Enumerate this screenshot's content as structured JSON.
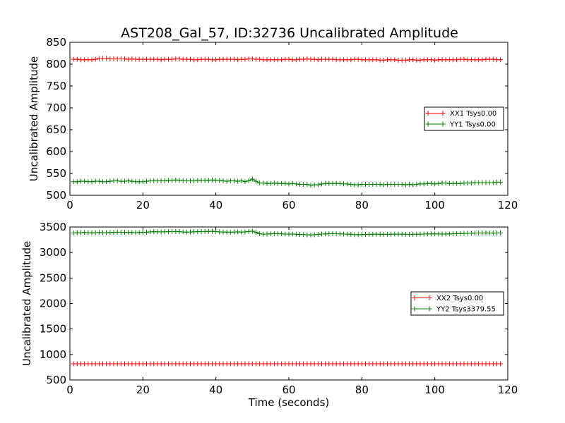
{
  "figure": {
    "title": "AST208_Gal_57, ID:32736 Uncalibrated Amplitude"
  },
  "chart_data": [
    {
      "type": "line",
      "title": "AST208_Gal_57, ID:32736 Uncalibrated Amplitude",
      "xlabel": "",
      "ylabel": "Uncalibrated Amplitude",
      "xlim": [
        0,
        120
      ],
      "ylim": [
        500,
        850
      ],
      "xticks": [
        0,
        20,
        40,
        60,
        80,
        100,
        120
      ],
      "yticks": [
        500,
        550,
        600,
        650,
        700,
        750,
        800,
        850
      ],
      "grid": false,
      "legend_position": "center-right",
      "x_start": 1,
      "x_step": 1,
      "series": [
        {
          "name": "XX1 Tsys0.00",
          "color": "#ff0000",
          "marker": "+",
          "values": [
            811,
            811,
            810,
            810,
            810,
            810,
            811,
            813,
            813,
            813,
            812,
            812,
            812,
            812,
            812,
            811,
            812,
            811,
            811,
            811,
            811,
            811,
            811,
            811,
            810,
            811,
            811,
            811,
            812,
            812,
            811,
            811,
            811,
            810,
            810,
            811,
            811,
            811,
            810,
            810,
            811,
            811,
            811,
            811,
            811,
            810,
            811,
            811,
            812,
            812,
            811,
            811,
            810,
            810,
            810,
            810,
            810,
            810,
            811,
            811,
            810,
            810,
            811,
            811,
            812,
            811,
            811,
            810,
            811,
            811,
            811,
            811,
            810,
            810,
            810,
            810,
            810,
            811,
            811,
            810,
            810,
            810,
            810,
            810,
            809,
            809,
            810,
            810,
            810,
            809,
            809,
            809,
            810,
            810,
            809,
            809,
            810,
            810,
            810,
            809,
            810,
            810,
            810,
            810,
            810,
            810,
            811,
            811,
            810,
            810,
            810,
            810,
            810,
            811,
            811,
            811,
            810,
            810
          ]
        },
        {
          "name": "YY1 Tsys0.00",
          "color": "#008000",
          "marker": "+",
          "values": [
            531,
            531,
            532,
            532,
            531,
            531,
            532,
            532,
            531,
            531,
            532,
            533,
            533,
            532,
            532,
            533,
            532,
            531,
            531,
            531,
            532,
            533,
            533,
            533,
            533,
            533,
            534,
            534,
            535,
            534,
            533,
            533,
            533,
            533,
            534,
            534,
            534,
            534,
            535,
            534,
            534,
            533,
            532,
            533,
            533,
            532,
            533,
            531,
            533,
            537,
            532,
            528,
            528,
            527,
            527,
            528,
            527,
            527,
            527,
            526,
            527,
            526,
            525,
            525,
            525,
            523,
            524,
            524,
            526,
            527,
            527,
            527,
            527,
            527,
            526,
            526,
            525,
            524,
            524,
            525,
            525,
            525,
            525,
            525,
            525,
            524,
            525,
            525,
            525,
            525,
            525,
            524,
            525,
            524,
            525,
            526,
            526,
            527,
            527,
            526,
            527,
            528,
            528,
            527,
            527,
            527,
            527,
            528,
            528,
            528,
            529,
            529,
            529,
            529,
            529,
            529,
            530,
            530
          ]
        }
      ]
    },
    {
      "type": "line",
      "title": "",
      "xlabel": "Time (seconds)",
      "ylabel": "Uncalibrated Amplitude",
      "xlim": [
        0,
        120
      ],
      "ylim": [
        500,
        3500
      ],
      "xticks": [
        0,
        20,
        40,
        60,
        80,
        100,
        120
      ],
      "yticks": [
        500,
        1000,
        1500,
        2000,
        2500,
        3000,
        3500
      ],
      "grid": false,
      "legend_position": "center-right",
      "x_start": 1,
      "x_step": 1,
      "series": [
        {
          "name": "XX2 Tsys0.00",
          "color": "#ff0000",
          "marker": "+",
          "values": [
            818,
            818,
            818,
            818,
            818,
            818,
            818,
            818,
            818,
            818,
            818,
            818,
            818,
            818,
            818,
            818,
            818,
            818,
            818,
            818,
            818,
            818,
            818,
            818,
            818,
            818,
            818,
            818,
            818,
            818,
            818,
            818,
            818,
            818,
            818,
            818,
            818,
            818,
            818,
            818,
            818,
            818,
            818,
            818,
            818,
            818,
            818,
            818,
            818,
            818,
            818,
            818,
            818,
            818,
            818,
            818,
            818,
            818,
            818,
            818,
            818,
            818,
            818,
            818,
            818,
            818,
            818,
            818,
            818,
            818,
            818,
            818,
            818,
            818,
            818,
            818,
            818,
            818,
            818,
            818,
            818,
            818,
            818,
            818,
            818,
            818,
            818,
            818,
            818,
            818,
            818,
            818,
            818,
            818,
            818,
            818,
            818,
            818,
            818,
            818,
            818,
            818,
            818,
            818,
            818,
            818,
            818,
            818,
            818,
            818,
            818,
            818,
            818,
            818,
            818,
            818,
            818,
            818
          ]
        },
        {
          "name": "YY2 Tsys3379.55",
          "color": "#008000",
          "marker": "+",
          "values": [
            3385,
            3388,
            3390,
            3392,
            3388,
            3386,
            3388,
            3392,
            3390,
            3388,
            3392,
            3395,
            3398,
            3396,
            3394,
            3395,
            3393,
            3390,
            3392,
            3395,
            3398,
            3405,
            3408,
            3406,
            3404,
            3406,
            3408,
            3410,
            3412,
            3408,
            3404,
            3400,
            3402,
            3406,
            3408,
            3410,
            3412,
            3414,
            3415,
            3412,
            3405,
            3402,
            3400,
            3398,
            3402,
            3405,
            3400,
            3404,
            3412,
            3418,
            3395,
            3368,
            3360,
            3362,
            3366,
            3370,
            3368,
            3365,
            3362,
            3360,
            3362,
            3358,
            3355,
            3352,
            3348,
            3345,
            3350,
            3355,
            3362,
            3366,
            3368,
            3370,
            3368,
            3366,
            3362,
            3360,
            3356,
            3352,
            3350,
            3352,
            3355,
            3356,
            3358,
            3358,
            3357,
            3356,
            3356,
            3358,
            3360,
            3360,
            3358,
            3356,
            3354,
            3356,
            3358,
            3360,
            3362,
            3364,
            3366,
            3366,
            3364,
            3362,
            3364,
            3366,
            3368,
            3370,
            3372,
            3374,
            3376,
            3378,
            3380,
            3382,
            3383,
            3384,
            3382,
            3380,
            3382,
            3384
          ]
        }
      ]
    }
  ]
}
